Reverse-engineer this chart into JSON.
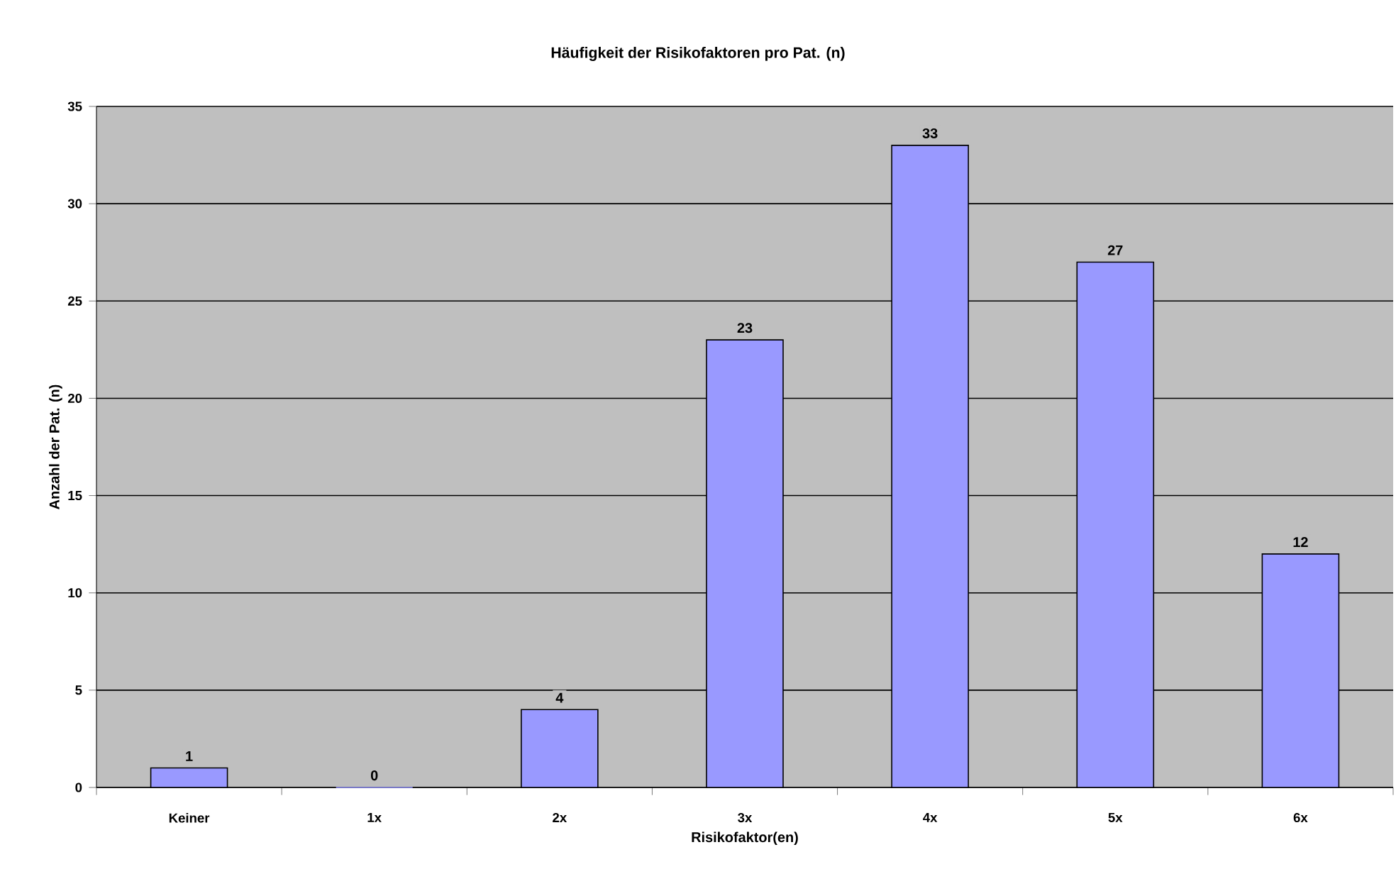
{
  "chart_data": {
    "type": "bar",
    "title": "Häufigkeit der Risikofaktoren pro Pat. (n)",
    "xlabel": "Risikofaktor(en)",
    "ylabel": "Anzahl der Pat. (n)",
    "categories": [
      "Keiner",
      "1x",
      "2x",
      "3x",
      "4x",
      "5x",
      "6x"
    ],
    "values": [
      1,
      0,
      4,
      23,
      33,
      27,
      12
    ],
    "color": "#9999ff",
    "ylim": [
      0,
      35
    ],
    "yticks": [
      0,
      5,
      10,
      15,
      20,
      25,
      30,
      35
    ],
    "grid": "y",
    "data_labels": true
  }
}
